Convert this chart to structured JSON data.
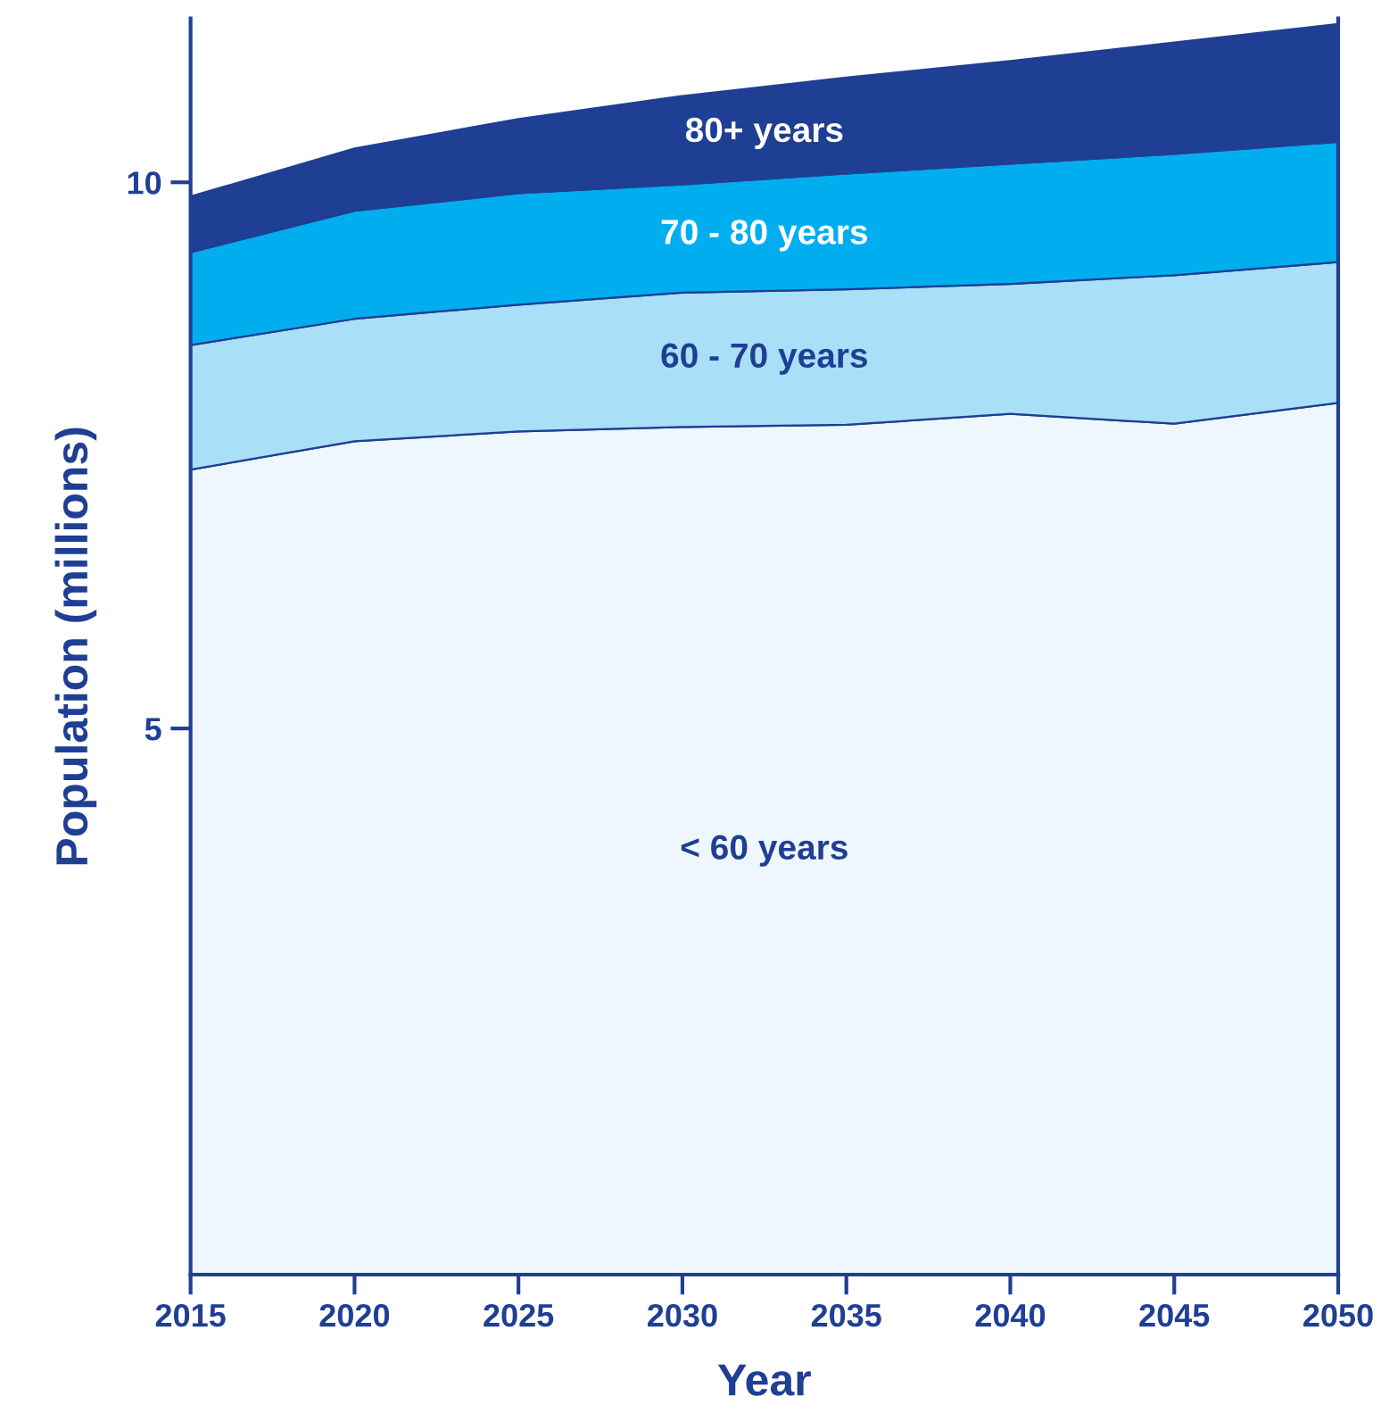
{
  "chart_data": {
    "type": "area",
    "stacked": true,
    "xlabel": "Year",
    "ylabel": "Population (millions)",
    "x": [
      2015,
      2020,
      2025,
      2030,
      2035,
      2040,
      2045,
      2050
    ],
    "series": [
      {
        "name": "< 60 years",
        "color": "#eef7fd",
        "values": [
          7.37,
          7.63,
          7.72,
          7.76,
          7.78,
          7.88,
          7.79,
          7.98
        ]
      },
      {
        "name": "60 - 70 years",
        "color": "#aadff8",
        "values": [
          1.14,
          1.12,
          1.16,
          1.23,
          1.24,
          1.19,
          1.36,
          1.29
        ]
      },
      {
        "name": "70 - 80 years",
        "color": "#00aeef",
        "values": [
          0.85,
          0.99,
          1.02,
          0.99,
          1.06,
          1.1,
          1.11,
          1.1
        ]
      },
      {
        "name": "80+ years",
        "color": "#1f3f94",
        "values": [
          0.51,
          0.57,
          0.68,
          0.81,
          0.88,
          0.94,
          1.02,
          1.08
        ]
      }
    ],
    "xlim": [
      2015,
      2050
    ],
    "xticks": [
      2015,
      2020,
      2025,
      2030,
      2035,
      2040,
      2045,
      2050
    ],
    "ylim": [
      0,
      11.5
    ],
    "yticks": [
      5,
      10
    ],
    "grid": false
  }
}
